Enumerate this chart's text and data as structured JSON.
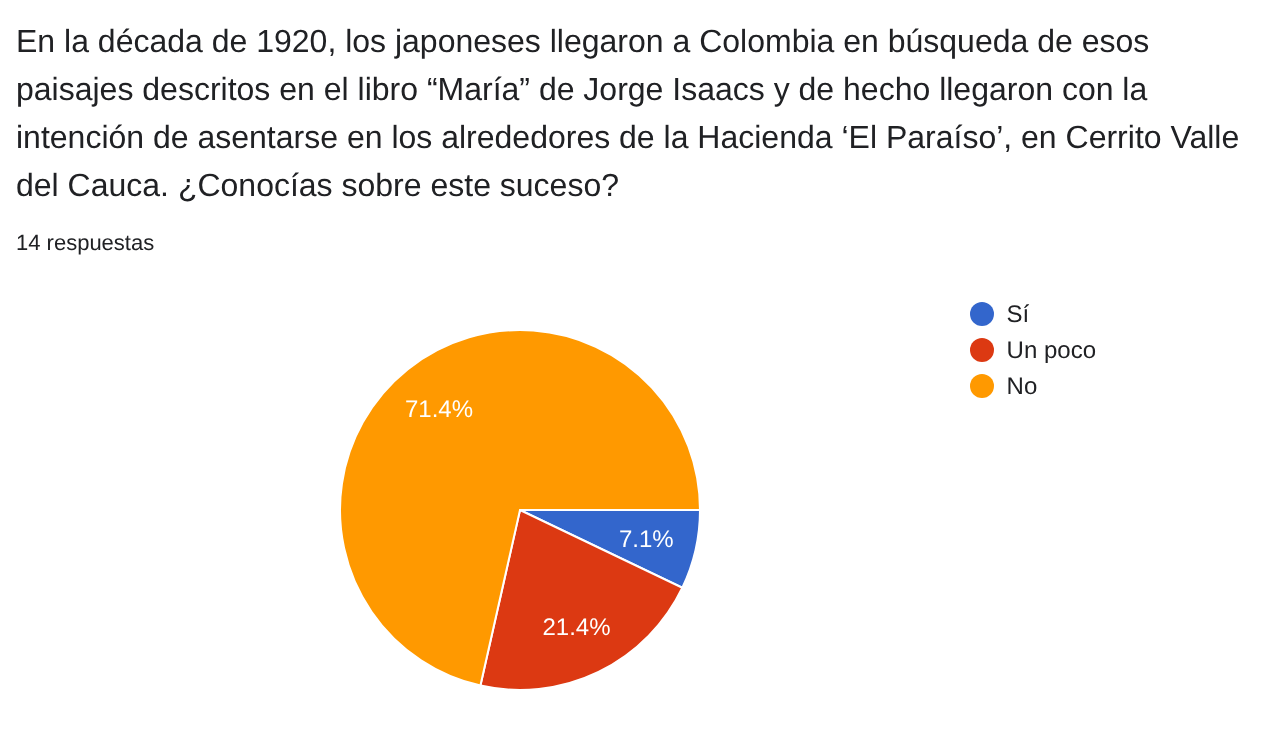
{
  "chart_data": {
    "type": "pie",
    "title": "En la década de 1920, los japoneses llegaron a Colombia en búsqueda de esos paisajes descritos en el libro “María” de Jorge Isaacs y de hecho llegaron con la intención de asentarse en los alrededores de la Hacienda ‘El Paraíso’, en Cerrito Valle del Cauca. ¿Conocías sobre este suceso?",
    "subtitle": "14 respuestas",
    "categories": [
      "Sí",
      "Un poco",
      "No"
    ],
    "values": [
      7.1,
      21.4,
      71.4
    ],
    "colors": [
      "#3366cc",
      "#dc3912",
      "#ff9900"
    ],
    "value_labels": [
      "7.1%",
      "21.4%",
      "71.4%"
    ],
    "legend": "right"
  }
}
